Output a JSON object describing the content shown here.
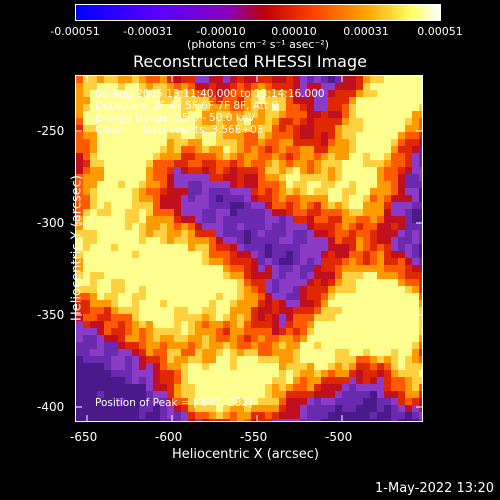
{
  "colorbar": {
    "tick_labels": [
      "-0.00051",
      "-0.00031",
      "-0.00010",
      "0.00010",
      "0.00031",
      "0.00051"
    ],
    "units": "(photons cm⁻² s⁻¹ asec⁻²)"
  },
  "image": {
    "title": "Reconstructed RHESSI Image",
    "annotations": [
      "03-Aug-2005 13:11:40.000 to 13:14:16.000",
      "Detectors: 3F 4F 5F 6F 7F 8F, Att 0",
      "Energy Range: 25.0 - 50.0 keV",
      "Clean     Total counts: 3.56E+03"
    ],
    "peak_text": "Position of Peak = [-641,-232]",
    "x_axis": {
      "title": "Heliocentric X (arcsec)",
      "ticks": [
        "-650",
        "-600",
        "-550",
        "-500"
      ]
    },
    "y_axis": {
      "title": "Heliocentric Y (arcsec)",
      "ticks": [
        "-250",
        "-300",
        "-350",
        "-400"
      ]
    }
  },
  "footer": {
    "timestamp": "1-May-2022 13:20"
  },
  "colors": {
    "colormap": [
      "#0000ff",
      "#5a00ff",
      "#9a00cc",
      "#d10000",
      "#ff5a00",
      "#ffb000",
      "#ffff60",
      "#ffffff"
    ],
    "background": "#000000",
    "axes": "#ffffff"
  }
}
